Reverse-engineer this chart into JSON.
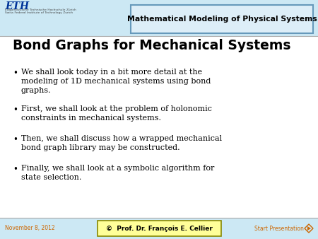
{
  "bg_color": "#cce8f4",
  "header_text": "Mathematical Modeling of Physical Systems",
  "eth_line1": "ETH",
  "eth_line2": "Eidgenössische Technische Hochschule Zürich",
  "eth_line3": "Swiss Federal Institute of Technology Zurich",
  "eth_color": "#003399",
  "title": "Bond Graphs for Mechanical Systems",
  "bullets": [
    "We shall look today in a bit more detail at the\nmodeling of 1D mechanical systems using bond\ngraphs.",
    "First, we shall look at the problem of holonomic\nconstraints in mechanical systems.",
    "Then, we shall discuss how a wrapped mechanical\nbond graph library may be constructed.",
    "Finally, we shall look at a symbolic algorithm for\nstate selection."
  ],
  "footer_date": "November 8, 2012",
  "footer_center": "©  Prof. Dr. François E. Cellier",
  "footer_right": "Start Presentation",
  "footer_date_color": "#cc6600",
  "footer_right_color": "#cc6600",
  "footer_center_bg": "#ffff99",
  "footer_center_border": "#888800",
  "separator_color": "#aaaaaa",
  "main_bg": "#ffffff",
  "header_box_bg": "#ddeef8",
  "header_box_border": "#6699bb"
}
